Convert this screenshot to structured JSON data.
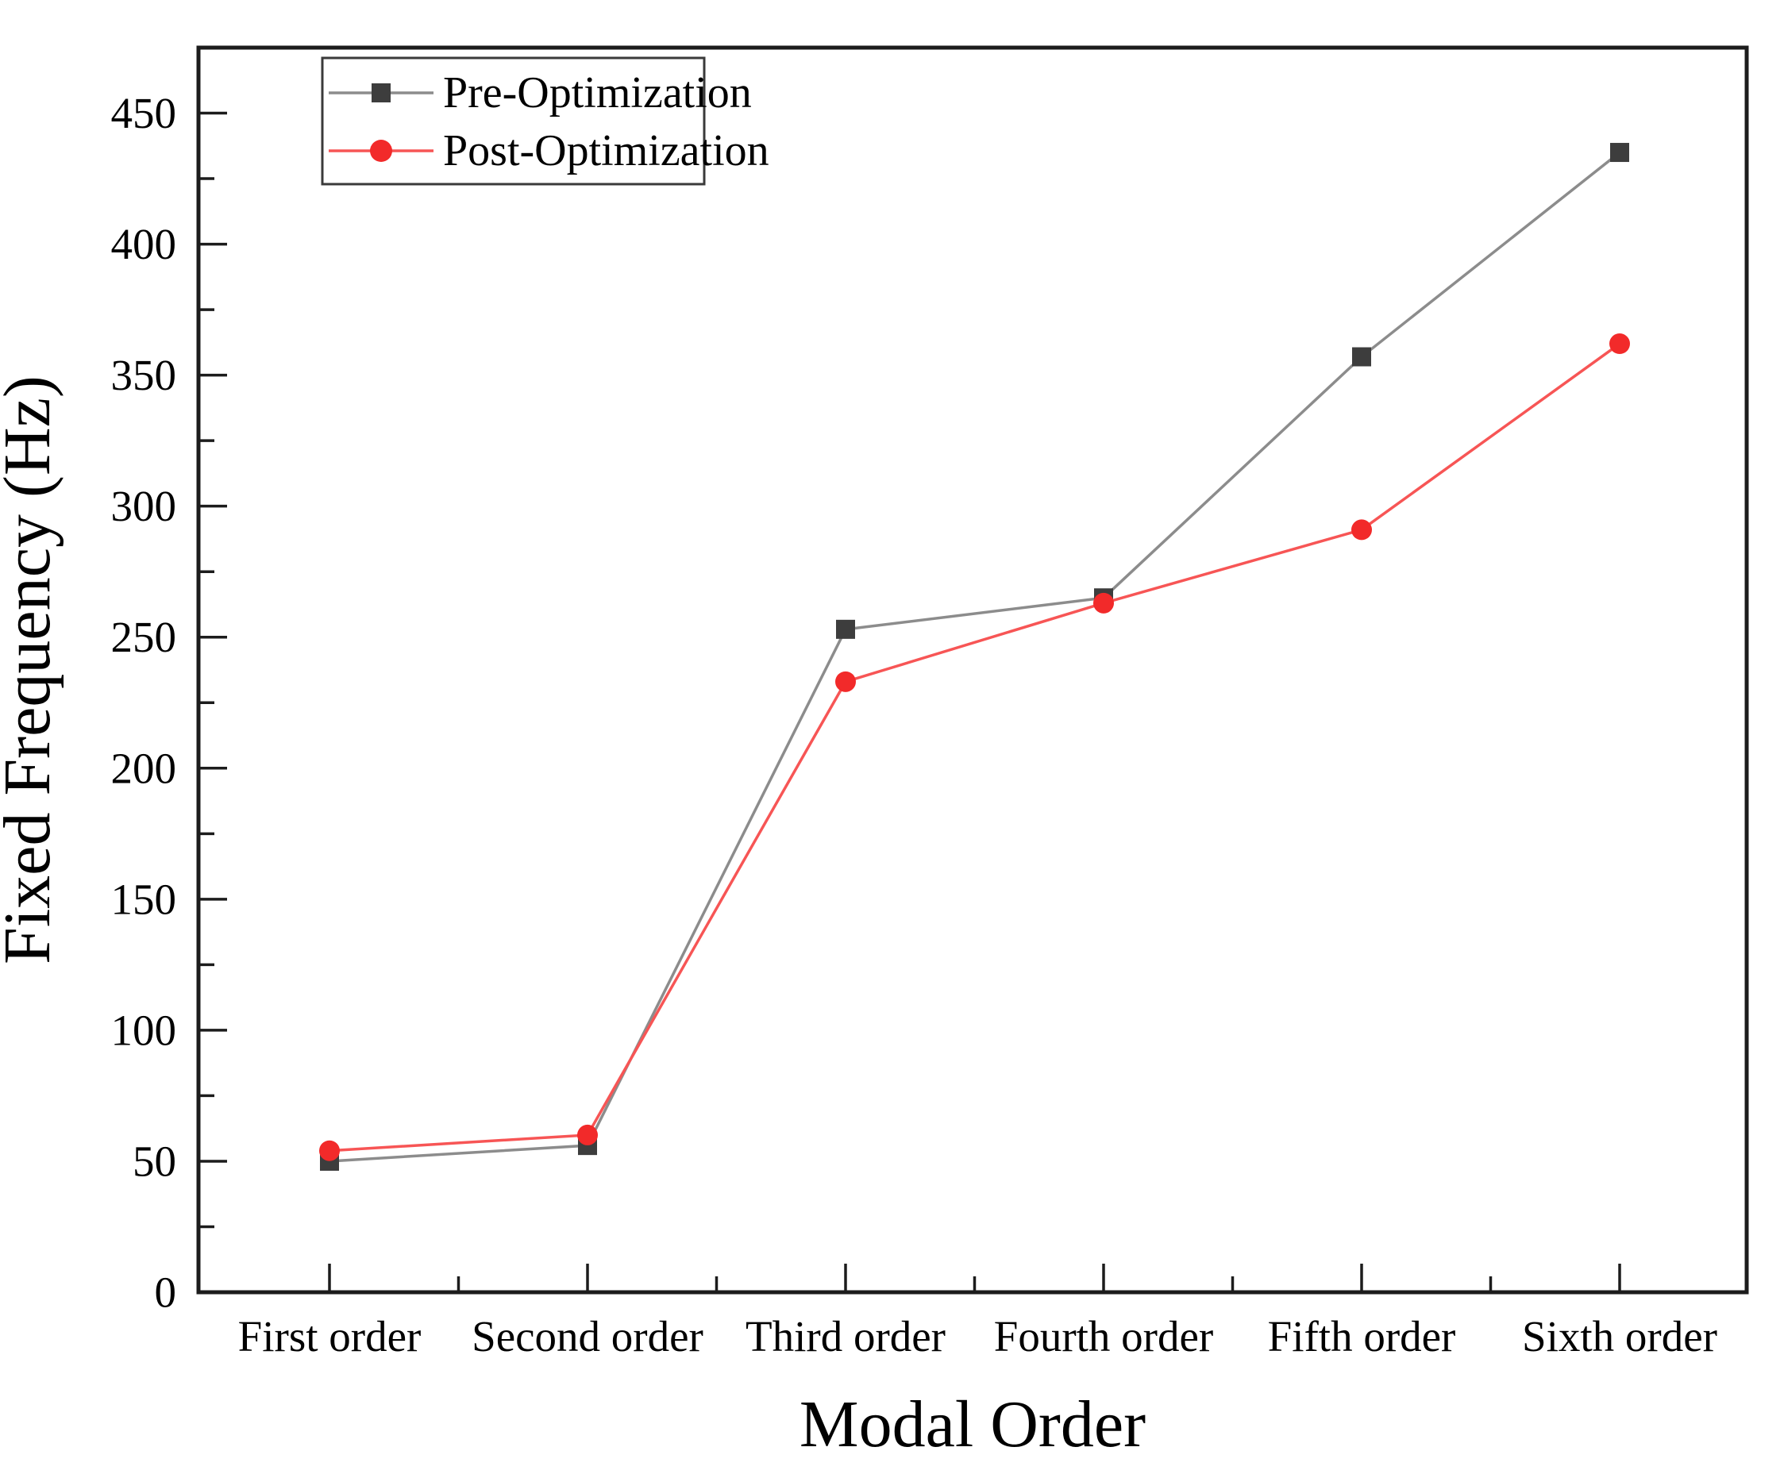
{
  "chart_data": {
    "type": "line",
    "title": "",
    "xlabel": "Modal Order",
    "ylabel": "Fixed Frequency (Hz)",
    "categories": [
      "First order",
      "Second order",
      "Third order",
      "Fourth order",
      "Fifth order",
      "Sixth order"
    ],
    "series": [
      {
        "name": "Pre-Optimization",
        "marker": "square",
        "marker_color": "#3d3d3d",
        "line_color": "#8c8c8c",
        "values": [
          50,
          56,
          253,
          265,
          357,
          435
        ]
      },
      {
        "name": "Post-Optimization",
        "marker": "circle",
        "marker_color": "#f22a2a",
        "line_color": "#f75555",
        "values": [
          54,
          60,
          233,
          263,
          291,
          362
        ]
      }
    ],
    "ylim": [
      0,
      475
    ],
    "yticks": [
      0,
      50,
      100,
      150,
      200,
      250,
      300,
      350,
      400,
      450
    ],
    "y_minor_step": 25,
    "grid": false,
    "legend_position": "top-left",
    "frame_color": "#1c1c1c",
    "background_color": "#ffffff"
  }
}
